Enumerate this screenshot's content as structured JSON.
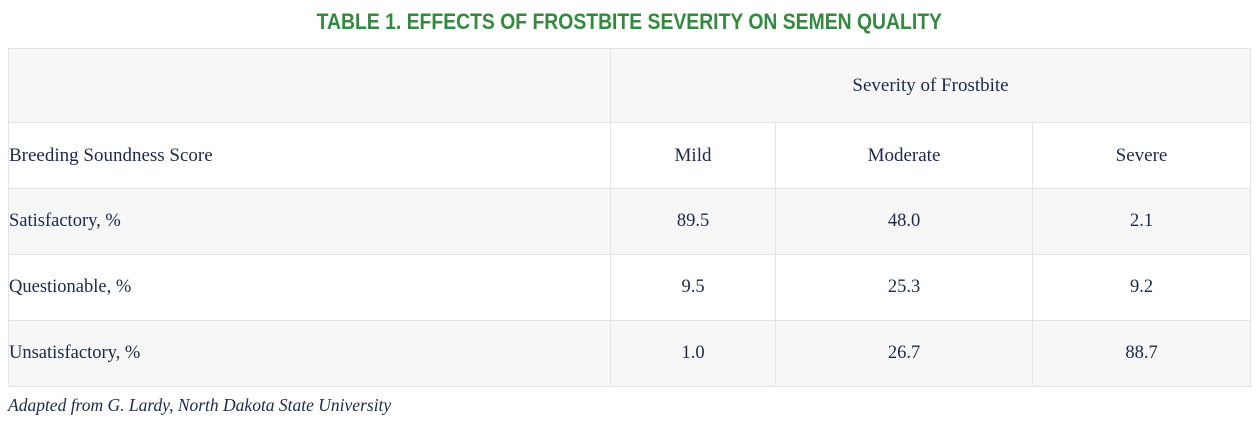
{
  "title": "TABLE 1. EFFECTS OF FROSTBITE SEVERITY ON SEMEN QUALITY",
  "table": {
    "span_header": "Severity of Frostbite",
    "row_header": "Breeding Soundness Score",
    "columns": [
      "Mild",
      "Moderate",
      "Severe"
    ],
    "rows": [
      {
        "label": "Satisfactory, %",
        "values": [
          "89.5",
          "48.0",
          "2.1"
        ]
      },
      {
        "label": "Questionable, %",
        "values": [
          "9.5",
          "25.3",
          "9.2"
        ]
      },
      {
        "label": "Unsatisfactory, %",
        "values": [
          "1.0",
          "26.7",
          "88.7"
        ]
      }
    ]
  },
  "footnote": "Adapted from G. Lardy, North Dakota State University",
  "colors": {
    "title_green": "#338a3e",
    "text_navy": "#1b2a4a",
    "alt_row_bg": "#f7f7f8",
    "border": "#e3e3e3",
    "page_bg": "#ffffff"
  },
  "chart_data": {
    "type": "table",
    "title": "TABLE 1. EFFECTS OF FROSTBITE SEVERITY ON SEMEN QUALITY",
    "column_group_label": "Severity of Frostbite",
    "row_header": "Breeding Soundness Score",
    "categories": [
      "Mild",
      "Moderate",
      "Severe"
    ],
    "series": [
      {
        "name": "Satisfactory, %",
        "values": [
          89.5,
          48.0,
          2.1
        ]
      },
      {
        "name": "Questionable, %",
        "values": [
          9.5,
          25.3,
          9.2
        ]
      },
      {
        "name": "Unsatisfactory, %",
        "values": [
          1.0,
          26.7,
          88.7
        ]
      }
    ],
    "footnote": "Adapted from G. Lardy, North Dakota State University"
  }
}
